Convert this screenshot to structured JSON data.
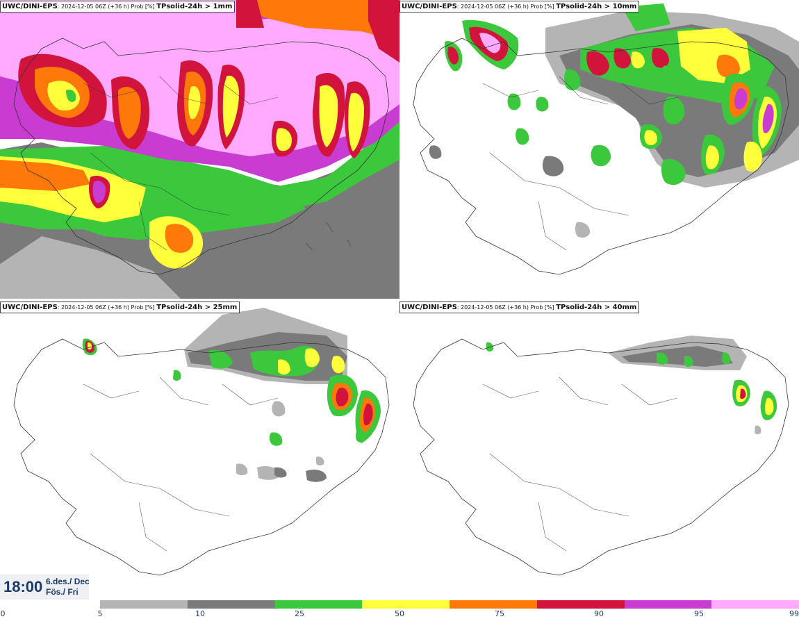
{
  "panels": [
    {
      "model": "UWC/DINI-EPS",
      "meta": ": 2024-12-05 06Z (+36 h) Prob [%] ",
      "param": "TPsolid-24h > 1mm"
    },
    {
      "model": "UWC/DINI-EPS",
      "meta": ": 2024-12-05 06Z (+36 h) Prob [%] ",
      "param": "TPsolid-24h > 10mm"
    },
    {
      "model": "UWC/DINI-EPS",
      "meta": ": 2024-12-05 06Z (+36 h) Prob [%] ",
      "param": "TPsolid-24h > 25mm"
    },
    {
      "model": "UWC/DINI-EPS",
      "meta": ": 2024-12-05 06Z (+36 h) Prob [%] ",
      "param": "TPsolid-24h > 40mm"
    }
  ],
  "valid_time": {
    "time": "18:00",
    "date": "6.des./ Dec",
    "day": "Fös./ Fri"
  },
  "legend": {
    "ticks": [
      "0",
      "5",
      "10",
      "25",
      "50",
      "75",
      "90",
      "95",
      "99"
    ],
    "colors": [
      "#b4b4b4",
      "#7a7a7a",
      "#3cc83c",
      "#ffff3c",
      "#ff780a",
      "#d2143c",
      "#c83cd2",
      "#ffaaff"
    ]
  }
}
